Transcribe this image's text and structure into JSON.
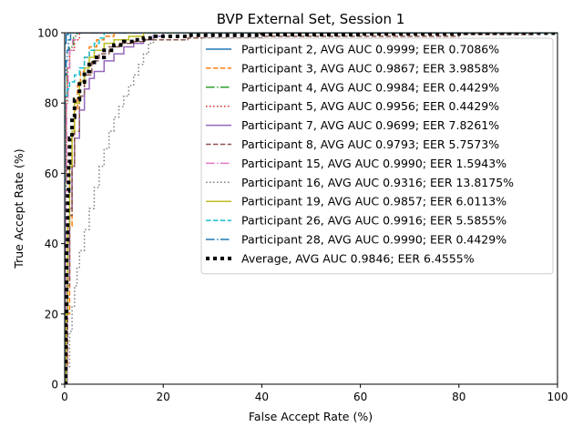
{
  "chart_data": {
    "type": "line",
    "title": "BVP External Set, Session 1",
    "xlabel": "False Accept Rate (%)",
    "ylabel": "True Accept Rate (%)",
    "xlim": [
      0,
      100
    ],
    "ylim": [
      0,
      100
    ],
    "xticks": [
      "0",
      "20",
      "40",
      "60",
      "80",
      "100"
    ],
    "yticks": [
      "0",
      "20",
      "40",
      "60",
      "80",
      "100"
    ],
    "grid": false,
    "legend_position": "top-right",
    "series": [
      {
        "name": "Participant 2, AVG AUC 0.9999; EER 0.7086%",
        "color": "#1f77b4",
        "dash": "solid",
        "x": [
          0,
          0,
          0.3,
          0.3,
          0.7,
          100
        ],
        "y": [
          0,
          97,
          97,
          99.5,
          100,
          100
        ]
      },
      {
        "name": "Participant 3, AVG AUC 0.9867; EER 3.9858%",
        "color": "#ff7f0e",
        "dash": "dashed",
        "x": [
          0,
          0.3,
          0.6,
          1.0,
          1.5,
          2.0,
          2.6,
          3.2,
          4.0,
          5.0,
          6.5,
          8.0,
          10,
          100
        ],
        "y": [
          0,
          5,
          20,
          45,
          65,
          78,
          85,
          89,
          93,
          96,
          98,
          99,
          100,
          100
        ]
      },
      {
        "name": "Participant 4, AVG AUC 0.9984; EER 0.4429%",
        "color": "#2ca02c",
        "dash": "dashdot",
        "x": [
          0,
          0,
          0.3,
          0.5,
          1.0,
          1.8,
          2.5,
          100
        ],
        "y": [
          0,
          55,
          80,
          90,
          96,
          99,
          100,
          100
        ]
      },
      {
        "name": "Participant 5, AVG AUC 0.9956; EER 0.4429%",
        "color": "#d62728",
        "dash": "dotted",
        "x": [
          0,
          0,
          0.3,
          0.5,
          1.0,
          2.0,
          3.0,
          100
        ],
        "y": [
          0,
          60,
          82,
          90,
          95,
          98,
          100,
          100
        ]
      },
      {
        "name": "Participant 7, AVG AUC 0.9699; EER 7.8261%",
        "color": "#9467bd",
        "dash": "solid",
        "x": [
          0,
          0.5,
          1.0,
          1.5,
          2.0,
          3.0,
          4.0,
          5.0,
          6.0,
          8.0,
          10.0,
          12.0,
          14.0,
          16.0,
          18.0,
          20,
          100
        ],
        "y": [
          0,
          30,
          50,
          62,
          70,
          78,
          84,
          87,
          89,
          92,
          94,
          96,
          97,
          98,
          99,
          100,
          100
        ]
      },
      {
        "name": "Participant 8, AVG AUC 0.9793; EER 5.7573%",
        "color": "#8c564b",
        "dash": "dashed",
        "x": [
          0,
          0.3,
          0.6,
          1.0,
          1.5,
          2.0,
          3.0,
          4.0,
          5.5,
          7.0,
          9.0,
          11.0,
          14.0,
          16.0,
          22.0,
          25.0,
          40.0,
          60.0,
          80.0,
          95.0,
          100
        ],
        "y": [
          0,
          10,
          28,
          48,
          62,
          72,
          82,
          88,
          92,
          94,
          96,
          97,
          97.5,
          98,
          98,
          98.5,
          99,
          99,
          99.5,
          100,
          100
        ]
      },
      {
        "name": "Participant 15, AVG AUC 0.9990; EER 1.5943%",
        "color": "#e377c2",
        "dash": "dashdot",
        "x": [
          0,
          0.2,
          0.4,
          0.7,
          1.0,
          1.6,
          2.2,
          100
        ],
        "y": [
          0,
          55,
          80,
          90,
          95,
          98,
          100,
          100
        ]
      },
      {
        "name": "Participant 16, AVG AUC 0.9316; EER 13.8175%",
        "color": "#7f7f7f",
        "dash": "dotted",
        "x": [
          0,
          0.5,
          1.0,
          1.5,
          2.0,
          2.5,
          3.0,
          4.0,
          5.0,
          6.0,
          7.0,
          8.0,
          9.0,
          10.0,
          11.0,
          12.0,
          13.0,
          14.0,
          15.0,
          16.0,
          17.0,
          18.0,
          100
        ],
        "y": [
          0,
          5,
          15,
          22,
          28,
          33,
          38,
          44,
          50,
          56,
          62,
          67,
          72,
          76,
          79,
          82,
          85,
          88,
          91,
          94,
          97,
          100,
          100
        ]
      },
      {
        "name": "Participant 19, AVG AUC 0.9857; EER 6.0113%",
        "color": "#bcbd22",
        "dash": "solid",
        "x": [
          0,
          0.3,
          0.6,
          1.0,
          1.5,
          2.0,
          3.0,
          4.0,
          5.0,
          6.0,
          8.0,
          10.0,
          13.0,
          16.0,
          100
        ],
        "y": [
          0,
          20,
          45,
          62,
          72,
          80,
          86,
          90,
          93,
          95,
          97,
          98,
          99,
          100,
          100
        ]
      },
      {
        "name": "Participant 26, AVG AUC 0.9916; EER 5.5855%",
        "color": "#17becf",
        "dash": "dashed",
        "x": [
          0,
          0,
          0.5,
          1.0,
          2.0,
          3.0,
          4.0,
          5.0,
          6.0,
          7.0,
          8.0,
          100
        ],
        "y": [
          0,
          82,
          84,
          86,
          88,
          90,
          93,
          95,
          97,
          98.5,
          100,
          100
        ]
      },
      {
        "name": "Participant 28, AVG AUC 0.9990; EER 0.4429%",
        "color": "#1f77b4",
        "dash": "dashdot",
        "x": [
          0,
          0,
          0.3,
          0.5,
          0.8,
          1.2,
          100
        ],
        "y": [
          0,
          88,
          92,
          95,
          98,
          100,
          100
        ]
      },
      {
        "name": "Average, AVG AUC 0.9846; EER 6.4555%",
        "color": "#000000",
        "dash": "dotted-thick",
        "x": [
          0,
          0.2,
          0.4,
          0.6,
          0.8,
          1.0,
          1.5,
          2.0,
          3.0,
          4.0,
          5.0,
          6.0,
          8.0,
          10.0,
          12.0,
          14.0,
          16.0,
          18.0,
          25.0,
          40.0,
          60.0,
          80.0,
          100
        ],
        "y": [
          0,
          20,
          40,
          55,
          63,
          70,
          76,
          81,
          86,
          89,
          91,
          93,
          95,
          96.5,
          97.5,
          98,
          98.5,
          99,
          99.3,
          99.5,
          99.7,
          99.9,
          100
        ]
      }
    ]
  }
}
